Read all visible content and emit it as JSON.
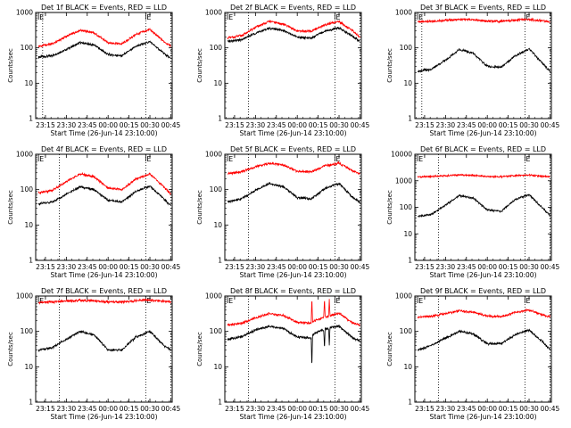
{
  "chart_data": [
    {
      "type": "line",
      "title": "Det 1f BLACK = Events, RED = LLD",
      "xlabel": "Start Time (26-Jun-14 23:10:00)",
      "ylabel": "Counts/sec",
      "yscale": "log",
      "ylim": [
        1,
        1000
      ],
      "xlim": [
        -120,
        5760
      ],
      "x_ticks": [
        300,
        1200,
        2100,
        3000,
        3900,
        4800,
        5700
      ],
      "x_tick_labels": [
        "23:15",
        "23:30",
        "23:45",
        "00:00",
        "00:15",
        "00:30",
        "00:45"
      ],
      "y_ticks": [
        1,
        10,
        100,
        1000
      ],
      "y_tick_labels": [
        "1",
        "10",
        "100",
        "1000"
      ],
      "vlines": [
        180,
        4620,
        5700
      ],
      "markers": [
        {
          "x": 0,
          "label": "E"
        },
        {
          "x": 4620,
          "label": "E"
        }
      ],
      "series": [
        {
          "color": "#000000",
          "x": [
            0,
            600,
            1200,
            1800,
            2400,
            3000,
            3600,
            4200,
            4800,
            5400,
            5700
          ],
          "values": [
            55,
            60,
            90,
            140,
            120,
            65,
            60,
            110,
            150,
            70,
            50
          ]
        },
        {
          "color": "#ff0000",
          "x": [
            0,
            600,
            1200,
            1800,
            2400,
            3000,
            3600,
            4200,
            4800,
            5400,
            5700
          ],
          "values": [
            110,
            130,
            210,
            320,
            260,
            140,
            130,
            240,
            330,
            150,
            115
          ]
        }
      ]
    },
    {
      "type": "line",
      "title": "Det 2f BLACK = Events, RED = LLD",
      "xlabel": "Start Time (26-Jun-14 23:10:00)",
      "ylabel": "Counts/sec",
      "yscale": "log",
      "ylim": [
        1,
        1000
      ],
      "xlim": [
        -120,
        5760
      ],
      "x_ticks": [
        300,
        1200,
        2100,
        3000,
        3900,
        4800,
        5700
      ],
      "x_tick_labels": [
        "23:15",
        "23:30",
        "23:45",
        "00:00",
        "00:15",
        "00:30",
        "00:45"
      ],
      "y_ticks": [
        1,
        10,
        100,
        1000
      ],
      "y_tick_labels": [
        "1",
        "10",
        "100",
        "1000"
      ],
      "vlines": [
        900,
        4620,
        5700
      ],
      "markers": [
        {
          "x": 0,
          "label": "E"
        },
        {
          "x": 4620,
          "label": "E"
        }
      ],
      "series": [
        {
          "color": "#000000",
          "x": [
            0,
            600,
            1200,
            1800,
            2400,
            3000,
            3600,
            4200,
            4800,
            5400,
            5700
          ],
          "values": [
            150,
            170,
            260,
            360,
            310,
            200,
            190,
            300,
            370,
            210,
            150
          ]
        },
        {
          "color": "#ff0000",
          "x": [
            0,
            600,
            1200,
            1800,
            2400,
            3000,
            3600,
            4200,
            4800,
            5400,
            5700
          ],
          "values": [
            190,
            220,
            380,
            560,
            470,
            300,
            290,
            450,
            560,
            300,
            200
          ]
        }
      ]
    },
    {
      "type": "line",
      "title": "Det 3f BLACK = Events, RED = LLD",
      "xlabel": "Start Time (26-Jun-14 23:10:00)",
      "ylabel": "Counts/sec",
      "yscale": "log",
      "ylim": [
        1,
        1000
      ],
      "xlim": [
        -120,
        5760
      ],
      "x_ticks": [
        300,
        1200,
        2100,
        3000,
        3900,
        4800,
        5700
      ],
      "x_tick_labels": [
        "23:15",
        "23:30",
        "23:45",
        "00:00",
        "00:15",
        "00:30",
        "00:45"
      ],
      "y_ticks": [
        1,
        10,
        100,
        1000
      ],
      "y_tick_labels": [
        "1",
        "10",
        "100",
        "1000"
      ],
      "vlines": [
        180,
        4620,
        5700
      ],
      "markers": [
        {
          "x": 0,
          "label": "E"
        },
        {
          "x": 4620,
          "label": "E"
        }
      ],
      "series": [
        {
          "color": "#000000",
          "x": [
            0,
            600,
            1200,
            1800,
            2400,
            3000,
            3600,
            4200,
            4800,
            5400,
            5700
          ],
          "values": [
            22,
            25,
            45,
            90,
            70,
            30,
            28,
            60,
            95,
            35,
            22
          ]
        },
        {
          "color": "#ff0000",
          "x": [
            0,
            600,
            1200,
            1800,
            2400,
            3000,
            3600,
            4200,
            4800,
            5400,
            5700
          ],
          "values": [
            550,
            560,
            600,
            640,
            620,
            570,
            560,
            610,
            640,
            580,
            550
          ]
        }
      ]
    },
    {
      "type": "line",
      "title": "Det 4f BLACK = Events, RED = LLD",
      "xlabel": "Start Time (26-Jun-14 23:10:00)",
      "ylabel": "Counts/sec",
      "yscale": "log",
      "ylim": [
        1,
        1000
      ],
      "xlim": [
        -120,
        5760
      ],
      "x_ticks": [
        300,
        1200,
        2100,
        3000,
        3900,
        4800,
        5700
      ],
      "x_tick_labels": [
        "23:15",
        "23:30",
        "23:45",
        "00:00",
        "00:15",
        "00:30",
        "00:45"
      ],
      "y_ticks": [
        1,
        10,
        100,
        1000
      ],
      "y_tick_labels": [
        "1",
        "10",
        "100",
        "1000"
      ],
      "vlines": [
        900,
        4620,
        5700
      ],
      "markers": [
        {
          "x": 0,
          "label": "E"
        },
        {
          "x": 4620,
          "label": "E"
        }
      ],
      "series": [
        {
          "color": "#000000",
          "x": [
            0,
            600,
            1200,
            1800,
            2400,
            3000,
            3600,
            4200,
            4800,
            5400,
            5700
          ],
          "values": [
            40,
            45,
            75,
            120,
            100,
            50,
            45,
            90,
            125,
            55,
            35
          ]
        },
        {
          "color": "#ff0000",
          "x": [
            0,
            600,
            1200,
            1800,
            2400,
            3000,
            3600,
            4200,
            4800,
            5400,
            5700
          ],
          "values": [
            80,
            95,
            170,
            280,
            230,
            110,
            100,
            200,
            280,
            120,
            75
          ]
        }
      ]
    },
    {
      "type": "line",
      "title": "Det 5f BLACK = Events, RED = LLD",
      "xlabel": "Start Time (26-Jun-14 23:10:00)",
      "ylabel": "Counts/sec",
      "yscale": "log",
      "ylim": [
        1,
        1000
      ],
      "xlim": [
        -120,
        5760
      ],
      "x_ticks": [
        300,
        1200,
        2100,
        3000,
        3900,
        4800,
        5700
      ],
      "x_tick_labels": [
        "23:15",
        "23:30",
        "23:45",
        "00:00",
        "00:15",
        "00:30",
        "00:45"
      ],
      "y_ticks": [
        1,
        10,
        100,
        1000
      ],
      "y_tick_labels": [
        "1",
        "10",
        "100",
        "1000"
      ],
      "vlines": [
        900,
        4620,
        5700
      ],
      "markers": [
        {
          "x": 0,
          "label": "E"
        },
        {
          "x": 4620,
          "label": "E"
        }
      ],
      "series": [
        {
          "color": "#000000",
          "x": [
            0,
            600,
            1200,
            1800,
            2400,
            3000,
            3600,
            4200,
            4800,
            5400,
            5700
          ],
          "values": [
            45,
            55,
            95,
            150,
            120,
            60,
            55,
            110,
            150,
            60,
            45
          ]
        },
        {
          "color": "#ff0000",
          "x": [
            0,
            600,
            1200,
            1800,
            2400,
            3000,
            3600,
            4200,
            4800,
            5400,
            5700
          ],
          "values": [
            280,
            320,
            440,
            560,
            500,
            330,
            320,
            470,
            560,
            340,
            280
          ]
        }
      ]
    },
    {
      "type": "line",
      "title": "Det 6f BLACK = Events, RED = LLD",
      "xlabel": "Start Time (26-Jun-14 23:10:00)",
      "ylabel": "Counts/sec",
      "yscale": "log",
      "ylim": [
        1,
        10000
      ],
      "xlim": [
        -120,
        5760
      ],
      "x_ticks": [
        300,
        1200,
        2100,
        3000,
        3900,
        4800,
        5700
      ],
      "x_tick_labels": [
        "23:15",
        "23:30",
        "23:45",
        "00:00",
        "00:15",
        "00:30",
        "00:45"
      ],
      "y_ticks": [
        1,
        10,
        100,
        1000,
        10000
      ],
      "y_tick_labels": [
        "1",
        "10",
        "100",
        "1000",
        "10000"
      ],
      "vlines": [
        900,
        4620,
        5700
      ],
      "markers": [
        {
          "x": 0,
          "label": "E"
        },
        {
          "x": 4620,
          "label": "E"
        }
      ],
      "series": [
        {
          "color": "#000000",
          "x": [
            0,
            600,
            1200,
            1800,
            2400,
            3000,
            3600,
            4200,
            4800,
            5400,
            5700
          ],
          "values": [
            45,
            55,
            120,
            280,
            220,
            80,
            70,
            200,
            300,
            90,
            50
          ]
        },
        {
          "color": "#ff0000",
          "x": [
            0,
            600,
            1200,
            1800,
            2400,
            3000,
            3600,
            4200,
            4800,
            5400,
            5700
          ],
          "values": [
            1400,
            1450,
            1550,
            1650,
            1600,
            1450,
            1430,
            1580,
            1650,
            1480,
            1400
          ]
        }
      ]
    },
    {
      "type": "line",
      "title": "Det 7f BLACK = Events, RED = LLD",
      "xlabel": "Start Time (26-Jun-14 23:10:00)",
      "ylabel": "Counts/sec",
      "yscale": "log",
      "ylim": [
        1,
        1000
      ],
      "xlim": [
        -120,
        5760
      ],
      "x_ticks": [
        300,
        1200,
        2100,
        3000,
        3900,
        4800,
        5700
      ],
      "x_tick_labels": [
        "23:15",
        "23:30",
        "23:45",
        "00:00",
        "00:15",
        "00:30",
        "00:45"
      ],
      "y_ticks": [
        1,
        10,
        100,
        1000
      ],
      "y_tick_labels": [
        "1",
        "10",
        "100",
        "1000"
      ],
      "vlines": [
        900,
        4620,
        5700
      ],
      "markers": [
        {
          "x": 0,
          "label": "E"
        },
        {
          "x": 4620,
          "label": "E"
        }
      ],
      "series": [
        {
          "color": "#000000",
          "x": [
            0,
            600,
            1200,
            1800,
            2400,
            3000,
            3600,
            4200,
            4800,
            5400,
            5700
          ],
          "values": [
            30,
            35,
            60,
            100,
            80,
            30,
            30,
            70,
            100,
            40,
            30
          ]
        },
        {
          "color": "#ff0000",
          "x": [
            0,
            600,
            1200,
            1800,
            2400,
            3000,
            3600,
            4200,
            4800,
            5400,
            5700
          ],
          "values": [
            650,
            680,
            720,
            760,
            730,
            680,
            670,
            740,
            780,
            700,
            680
          ]
        }
      ]
    },
    {
      "type": "line",
      "title": "Det 8f BLACK = Events, RED = LLD",
      "xlabel": "Start Time (26-Jun-14 23:10:00)",
      "ylabel": "Counts/sec",
      "yscale": "log",
      "ylim": [
        1,
        1000
      ],
      "xlim": [
        -120,
        5760
      ],
      "x_ticks": [
        300,
        1200,
        2100,
        3000,
        3900,
        4800,
        5700
      ],
      "x_tick_labels": [
        "23:15",
        "23:30",
        "23:45",
        "00:00",
        "00:15",
        "00:30",
        "00:45"
      ],
      "y_ticks": [
        1,
        10,
        100,
        1000
      ],
      "y_tick_labels": [
        "1",
        "10",
        "100",
        "1000"
      ],
      "vlines": [
        900,
        4620,
        5700
      ],
      "markers": [
        {
          "x": 0,
          "label": "E"
        },
        {
          "x": 4620,
          "label": "E"
        }
      ],
      "series": [
        {
          "color": "#000000",
          "x": [
            0,
            600,
            1200,
            1800,
            2400,
            3000,
            3600,
            3630,
            3660,
            3900,
            4140,
            4170,
            4200,
            4350,
            4380,
            4410,
            4800,
            5400,
            5700
          ],
          "values": [
            60,
            70,
            110,
            140,
            120,
            70,
            65,
            9,
            80,
            100,
            110,
            30,
            120,
            120,
            40,
            130,
            140,
            65,
            55
          ]
        },
        {
          "color": "#ff0000",
          "x": [
            0,
            600,
            1200,
            1800,
            2400,
            3000,
            3600,
            3630,
            3660,
            3900,
            4140,
            4170,
            4200,
            4350,
            4380,
            4410,
            4800,
            5400,
            5700
          ],
          "values": [
            150,
            170,
            240,
            320,
            280,
            180,
            170,
            900,
            190,
            220,
            240,
            900,
            260,
            270,
            900,
            280,
            330,
            170,
            150
          ]
        }
      ]
    },
    {
      "type": "line",
      "title": "Det 9f BLACK = Events, RED = LLD",
      "xlabel": "Start Time (26-Jun-14 23:10:00)",
      "ylabel": "Counts/sec",
      "yscale": "log",
      "ylim": [
        1,
        1000
      ],
      "xlim": [
        -120,
        5760
      ],
      "x_ticks": [
        300,
        1200,
        2100,
        3000,
        3900,
        4800,
        5700
      ],
      "x_tick_labels": [
        "23:15",
        "23:30",
        "23:45",
        "00:00",
        "00:15",
        "00:30",
        "00:45"
      ],
      "y_ticks": [
        1,
        10,
        100,
        1000
      ],
      "y_tick_labels": [
        "1",
        "10",
        "100",
        "1000"
      ],
      "vlines": [
        900,
        4620,
        5700
      ],
      "markers": [
        {
          "x": 0,
          "label": "E"
        },
        {
          "x": 4620,
          "label": "E"
        }
      ],
      "series": [
        {
          "color": "#000000",
          "x": [
            0,
            600,
            1200,
            1800,
            2400,
            3000,
            3600,
            4200,
            4800,
            5400,
            5700
          ],
          "values": [
            30,
            40,
            65,
            100,
            85,
            45,
            45,
            80,
            110,
            50,
            30
          ]
        },
        {
          "color": "#ff0000",
          "x": [
            0,
            600,
            1200,
            1800,
            2400,
            3000,
            3600,
            4200,
            4800,
            5400,
            5700
          ],
          "values": [
            250,
            270,
            320,
            380,
            350,
            270,
            260,
            340,
            400,
            290,
            260
          ]
        }
      ]
    }
  ]
}
